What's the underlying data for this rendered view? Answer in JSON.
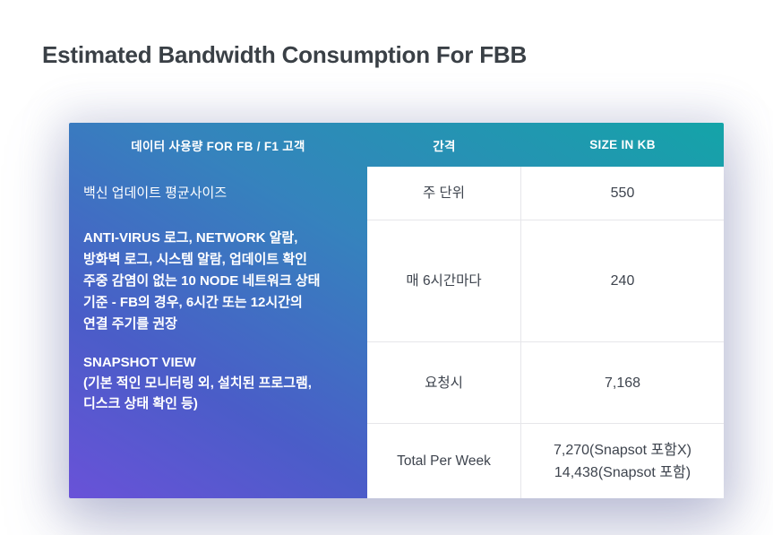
{
  "page": {
    "title": "Estimated Bandwidth Consumption For FBB"
  },
  "table": {
    "headers": {
      "usage": "데이터 사용량 FOR FB / F1 고객",
      "interval": "간격",
      "size": "SIZE IN KB"
    },
    "rows": [
      {
        "label": "백신 업데이트 평균사이즈",
        "interval": "주 단위",
        "size": "550"
      },
      {
        "label_lines": [
          "ANTI-VIRUS 로그, NETWORK 알람,",
          "방화벽 로그, 시스템 알람, 업데이트 확인",
          "주중 감염이 없는 10 NODE 네트워크 상태",
          "기준 - FB의 경우, 6시간 또는 12시간의",
          "연결 주기를 권장"
        ],
        "interval": "매 6시간마다",
        "size": "240"
      },
      {
        "label_lines": [
          "SNAPSHOT VIEW",
          "(기본 적인 모니터링 외, 설치된 프로그램,",
          "디스크 상태 확인 등)"
        ],
        "interval": "요청시",
        "size": "7,168"
      },
      {
        "label": "",
        "interval": "Total Per Week",
        "size_lines": [
          "7,270(Snapsot 포함X)",
          "14,438(Snapsot 포함)"
        ]
      }
    ]
  },
  "colors": {
    "gradient_teal": "#14a4a8",
    "gradient_blue": "#4a5dc8",
    "gradient_purple": "#6952d8",
    "header_text": "#ffffff",
    "cell_text": "#3e444e",
    "title_text": "#3a4046",
    "grid_line": "#e6e6ea"
  },
  "chart_data": {
    "type": "table",
    "title": "Estimated Bandwidth Consumption For FBB",
    "columns": [
      "데이터 사용량 FOR FB / F1 고객",
      "간격",
      "SIZE IN KB"
    ],
    "rows": [
      [
        "백신 업데이트 평균사이즈",
        "주 단위",
        "550"
      ],
      [
        "ANTI-VIRUS 로그, NETWORK 알람, 방화벽 로그, 시스템 알람, 업데이트 확인 주중 감염이 없는 10 NODE 네트워크 상태 기준 - FB의 경우, 6시간 또는 12시간의 연결 주기를 권장",
        "매 6시간마다",
        "240"
      ],
      [
        "SNAPSHOT VIEW (기본 적인 모니터링 외, 설치된 프로그램, 디스크 상태 확인 등)",
        "요청시",
        "7,168"
      ],
      [
        "",
        "Total Per Week",
        "7,270(Snapsot 포함X) 14,438(Snapsot 포함)"
      ]
    ]
  }
}
